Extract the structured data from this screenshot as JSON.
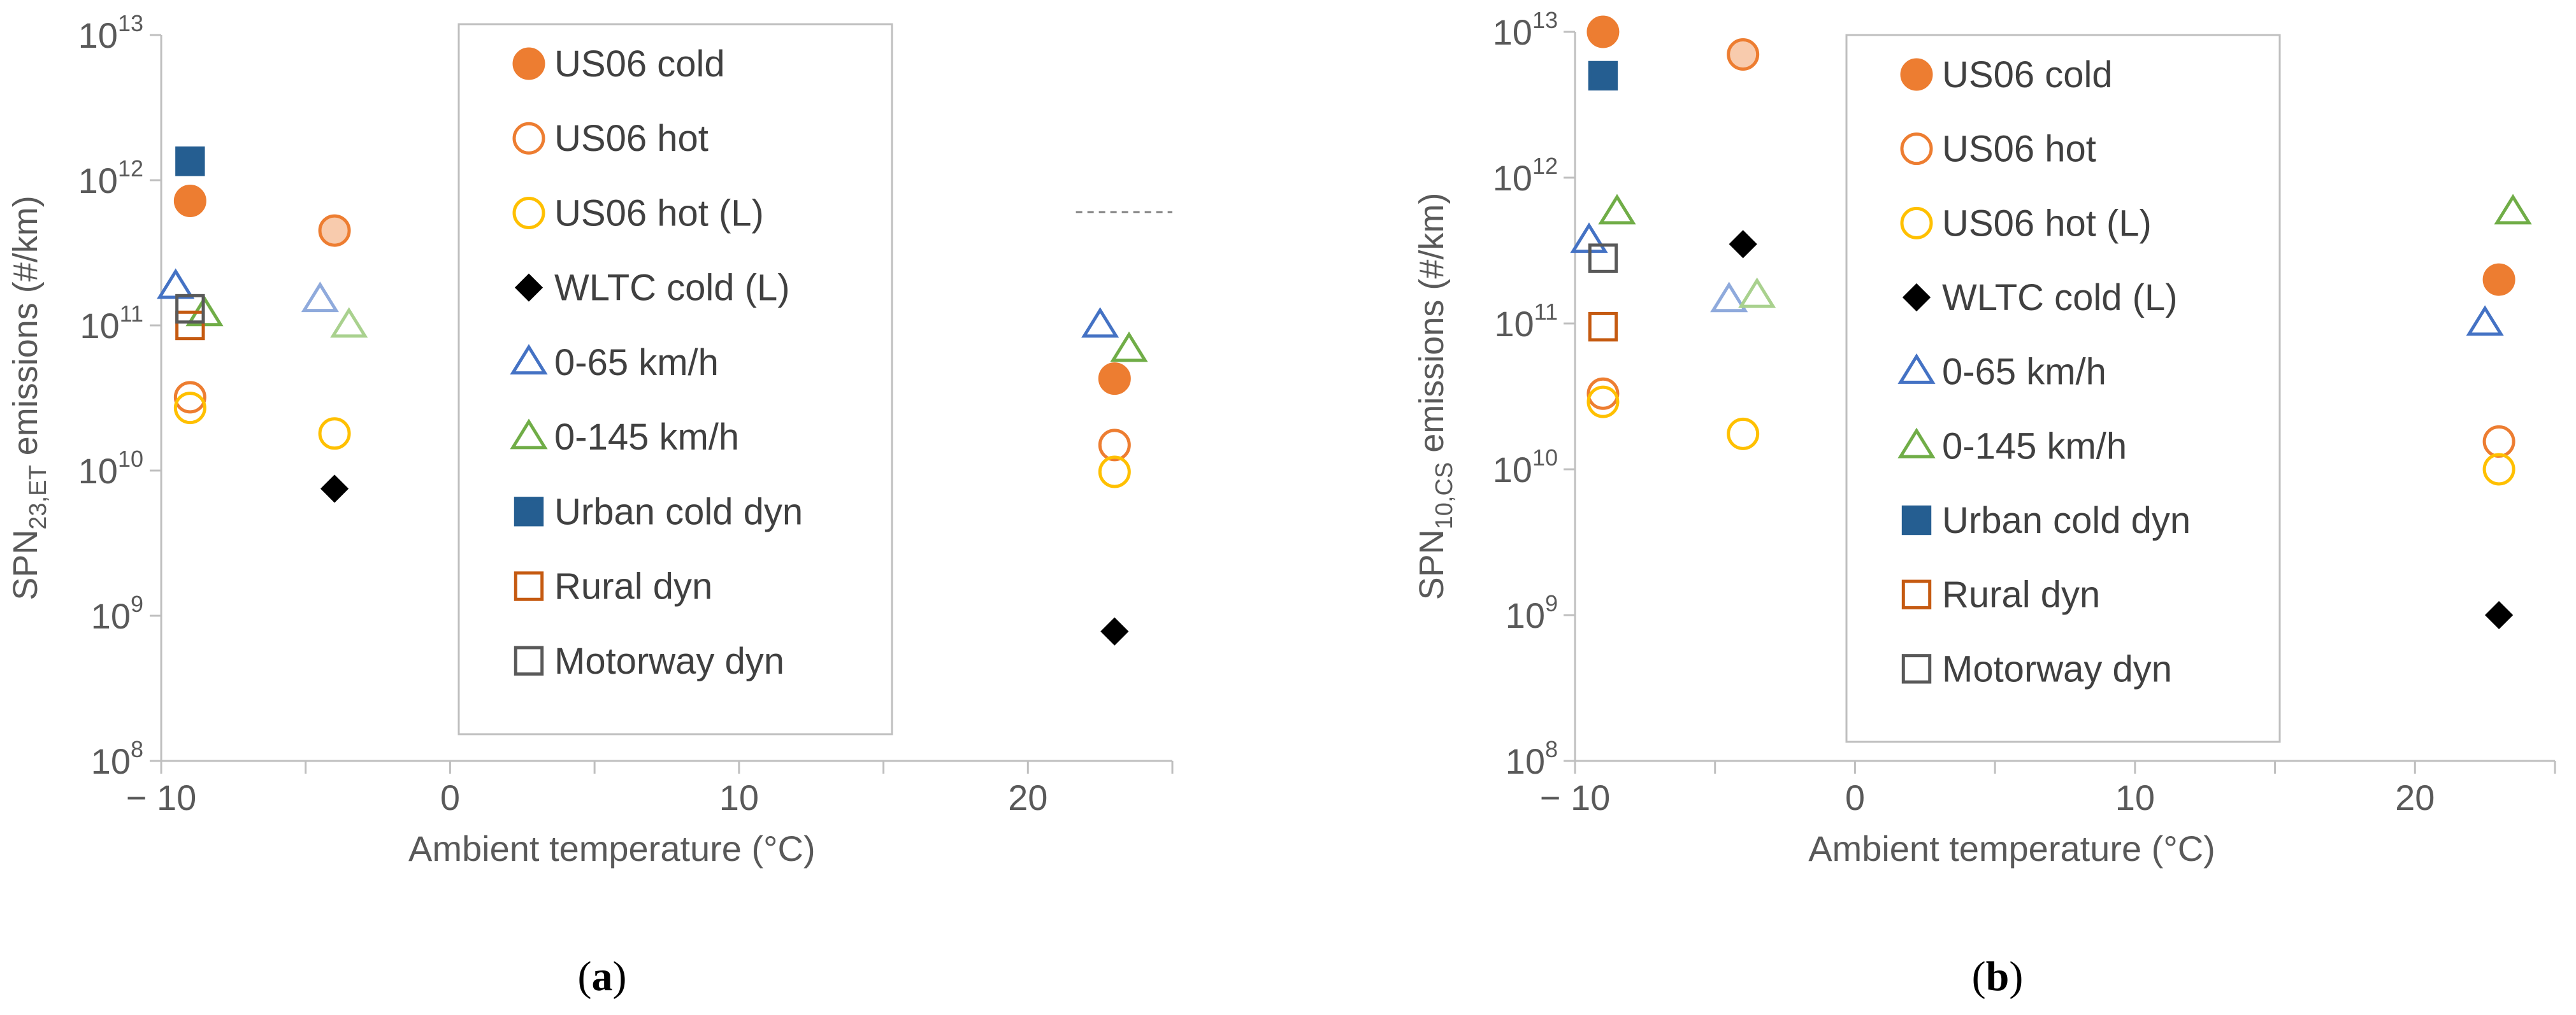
{
  "colors": {
    "orange": "#ED7D31",
    "orange_light": "#F8CBAD",
    "yellow": "#FFC000",
    "black": "#000000",
    "blue_triangle": "#4472C4",
    "blue_triangle_light": "#8FAADC",
    "green_triangle": "#70AD47",
    "green_triangle_light": "#A9D18E",
    "navy": "#255E91",
    "brown": "#C55A11",
    "grey": "#595959",
    "axis": "#BFBFBF"
  },
  "chart_data": [
    {
      "type": "scatter",
      "panel_label": "a",
      "ylabel_main": "SPN",
      "ylabel_sub": "23,ET",
      "ylabel_rest": " emissions (#/km)",
      "xlabel": "Ambient temperature (°C)",
      "xlim": [
        -10,
        25
      ],
      "ylim_log10": [
        8,
        13
      ],
      "x_ticks": [
        -10,
        0,
        10,
        20
      ],
      "x_tick_labels": [
        "− 10",
        "0",
        "10",
        "20"
      ],
      "y_tick_exponents": [
        8,
        9,
        10,
        11,
        12,
        13
      ],
      "y_tick_base": "10",
      "reference_line_log10": 11.78,
      "reference_line_x": [
        21,
        25
      ],
      "series": [
        {
          "name": "US06 cold",
          "marker": "circle",
          "fill": "orange",
          "stroke": "orange",
          "points": [
            {
              "x": -9,
              "y": 720000000000.0
            },
            {
              "x": 23,
              "y": 43000000000.0
            }
          ]
        },
        {
          "name": "US06 hot",
          "marker": "circle",
          "fill": "none",
          "stroke": "orange",
          "points": [
            {
              "x": -9,
              "y": 32000000000.0
            },
            {
              "x": 23,
              "y": 15000000000.0
            }
          ]
        },
        {
          "name": "US06 hot (L)",
          "marker": "circle",
          "fill": "none",
          "stroke": "yellow",
          "points": [
            {
              "x": -9,
              "y": 27000000000.0
            },
            {
              "x": -4,
              "y": 18000000000.0
            },
            {
              "x": 23,
              "y": 9800000000.0
            }
          ]
        },
        {
          "name": "WLTC cold (L)",
          "marker": "diamond",
          "fill": "black",
          "stroke": "black",
          "points": [
            {
              "x": -4,
              "y": 7500000000.0
            },
            {
              "x": 23,
              "y": 780000000.0
            }
          ]
        },
        {
          "name": "0-65 km/h",
          "marker": "triangle",
          "fill": "none",
          "stroke": "blue_triangle",
          "points": [
            {
              "x": -9.5,
              "y": 185000000000.0
            },
            {
              "x": 22.5,
              "y": 100000000000.0
            }
          ]
        },
        {
          "name": "0-145 km/h",
          "marker": "triangle",
          "fill": "none",
          "stroke": "green_triangle",
          "points": [
            {
              "x": -8.5,
              "y": 120000000000.0
            },
            {
              "x": 23.5,
              "y": 68000000000.0
            }
          ]
        },
        {
          "name": "Urban cold dyn",
          "marker": "square",
          "fill": "navy",
          "stroke": "navy",
          "points": [
            {
              "x": -9,
              "y": 1350000000000.0
            }
          ]
        },
        {
          "name": "Rural dyn",
          "marker": "square",
          "fill": "none",
          "stroke": "brown",
          "points": [
            {
              "x": -9,
              "y": 100000000000.0
            }
          ]
        },
        {
          "name": "Motorway dyn",
          "marker": "square",
          "fill": "none",
          "stroke": "grey",
          "points": [
            {
              "x": -9,
              "y": 130000000000.0
            }
          ]
        }
      ],
      "extra_points": [
        {
          "x": -4,
          "y": 450000000000.0,
          "marker": "circle",
          "fill": "orange_light",
          "stroke": "orange"
        },
        {
          "x": -4.5,
          "y": 150000000000.0,
          "marker": "triangle",
          "fill": "none",
          "stroke": "blue_triangle_light"
        },
        {
          "x": -3.5,
          "y": 100000000000.0,
          "marker": "triangle",
          "fill": "none",
          "stroke": "green_triangle_light"
        }
      ],
      "legend_position": "upper-center"
    },
    {
      "type": "scatter",
      "panel_label": "b",
      "ylabel_main": "SPN",
      "ylabel_sub": "10,CS",
      "ylabel_rest": " emissions (#/km)",
      "xlabel": "Ambient temperature (°C)",
      "xlim": [
        -10,
        25
      ],
      "ylim_log10": [
        8,
        13
      ],
      "x_ticks": [
        -10,
        0,
        10,
        20
      ],
      "x_tick_labels": [
        "− 10",
        "0",
        "10",
        "20"
      ],
      "y_tick_exponents": [
        8,
        9,
        10,
        11,
        12,
        13
      ],
      "y_tick_base": "10",
      "series": [
        {
          "name": "US06 cold",
          "marker": "circle",
          "fill": "orange",
          "stroke": "orange",
          "points": [
            {
              "x": -9,
              "y": 10000000000000.0
            },
            {
              "x": 23,
              "y": 200000000000.0
            }
          ]
        },
        {
          "name": "US06 hot",
          "marker": "circle",
          "fill": "none",
          "stroke": "orange",
          "points": [
            {
              "x": -9,
              "y": 33000000000.0
            },
            {
              "x": 23,
              "y": 15500000000.0
            }
          ]
        },
        {
          "name": "US06 hot (L)",
          "marker": "circle",
          "fill": "none",
          "stroke": "yellow",
          "points": [
            {
              "x": -9,
              "y": 29000000000.0
            },
            {
              "x": -4,
              "y": 17500000000.0
            },
            {
              "x": 23,
              "y": 10000000000.0
            }
          ]
        },
        {
          "name": "WLTC cold (L)",
          "marker": "diamond",
          "fill": "black",
          "stroke": "black",
          "points": [
            {
              "x": -4,
              "y": 350000000000.0
            },
            {
              "x": 23,
              "y": 1000000000.0
            }
          ]
        },
        {
          "name": "0-65 km/h",
          "marker": "triangle",
          "fill": "none",
          "stroke": "blue_triangle",
          "points": [
            {
              "x": -9.5,
              "y": 370000000000.0
            },
            {
              "x": 22.5,
              "y": 100000000000.0
            }
          ]
        },
        {
          "name": "0-145 km/h",
          "marker": "triangle",
          "fill": "none",
          "stroke": "green_triangle",
          "points": [
            {
              "x": -8.5,
              "y": 580000000000.0
            },
            {
              "x": 23.5,
              "y": 580000000000.0
            }
          ]
        },
        {
          "name": "Urban cold dyn",
          "marker": "square",
          "fill": "navy",
          "stroke": "navy",
          "points": [
            {
              "x": -9,
              "y": 5000000000000.0
            }
          ]
        },
        {
          "name": "Rural dyn",
          "marker": "square",
          "fill": "none",
          "stroke": "brown",
          "points": [
            {
              "x": -9,
              "y": 95000000000.0
            }
          ]
        },
        {
          "name": "Motorway dyn",
          "marker": "square",
          "fill": "none",
          "stroke": "grey",
          "points": [
            {
              "x": -9,
              "y": 280000000000.0
            }
          ]
        }
      ],
      "extra_points": [
        {
          "x": -4,
          "y": 7000000000000.0,
          "marker": "circle",
          "fill": "orange_light",
          "stroke": "orange"
        },
        {
          "x": -4.5,
          "y": 145000000000.0,
          "marker": "triangle",
          "fill": "none",
          "stroke": "blue_triangle_light"
        },
        {
          "x": -3.5,
          "y": 155000000000.0,
          "marker": "triangle",
          "fill": "none",
          "stroke": "green_triangle_light"
        }
      ],
      "legend_position": "upper-center"
    }
  ]
}
